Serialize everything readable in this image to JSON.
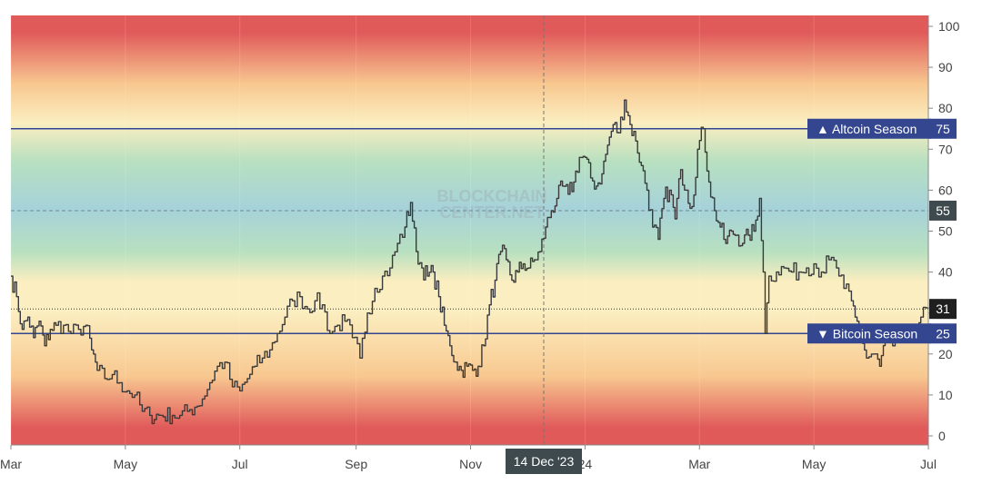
{
  "watermark": {
    "line1": "BLOCKCHAIN",
    "line2": "CENTER.NET"
  },
  "chart_data": {
    "type": "line",
    "y_axis": {
      "range": [
        0,
        100
      ],
      "ticks": [
        0,
        10,
        20,
        30,
        40,
        50,
        60,
        70,
        80,
        90,
        100
      ],
      "position": "right"
    },
    "x_axis": {
      "ticks": [
        {
          "label": "Mar",
          "index": 0
        },
        {
          "label": "May",
          "index": 61
        },
        {
          "label": "Jul",
          "index": 122
        },
        {
          "label": "Sep",
          "index": 184
        },
        {
          "label": "Nov",
          "index": 245
        },
        {
          "label": "24",
          "index": 306
        },
        {
          "label": "Mar",
          "index": 367
        },
        {
          "label": "May",
          "index": 428
        },
        {
          "label": "Jul",
          "index": 489
        }
      ]
    },
    "reference_lines": [
      {
        "label": "▲ Altcoin Season",
        "value": 75
      },
      {
        "label": "▼ Bitcoin Season",
        "value": 25
      }
    ],
    "dashed_level": {
      "value": 55,
      "label": "55"
    },
    "current_value": {
      "value": 31,
      "label": "31"
    },
    "crosshair": {
      "label": "14 Dec '23",
      "index": 284
    },
    "gradient_colors": {
      "top": "#e05a5a",
      "orange": "#f8c890",
      "pale": "#fbeec0",
      "mint": "#b8e0c0",
      "blue": "#a6d2da"
    },
    "series": [
      {
        "color": "#3a3a3a",
        "keypoints": [
          [
            0,
            39
          ],
          [
            3,
            34
          ],
          [
            6,
            26
          ],
          [
            9,
            29
          ],
          [
            12,
            24
          ],
          [
            15,
            28
          ],
          [
            18,
            22
          ],
          [
            21,
            26
          ],
          [
            24,
            27
          ],
          [
            28,
            27
          ],
          [
            32,
            25
          ],
          [
            36,
            26
          ],
          [
            40,
            27
          ],
          [
            43,
            21
          ],
          [
            46,
            16
          ],
          [
            50,
            14
          ],
          [
            54,
            15
          ],
          [
            58,
            13
          ],
          [
            62,
            11
          ],
          [
            66,
            10
          ],
          [
            70,
            6
          ],
          [
            74,
            5
          ],
          [
            80,
            5
          ],
          [
            86,
            5
          ],
          [
            90,
            5
          ],
          [
            94,
            6
          ],
          [
            98,
            7
          ],
          [
            102,
            9
          ],
          [
            106,
            13
          ],
          [
            110,
            17
          ],
          [
            114,
            18
          ],
          [
            118,
            12
          ],
          [
            122,
            11
          ],
          [
            126,
            14
          ],
          [
            130,
            17
          ],
          [
            134,
            19
          ],
          [
            138,
            21
          ],
          [
            142,
            25
          ],
          [
            146,
            29
          ],
          [
            150,
            33
          ],
          [
            154,
            34
          ],
          [
            158,
            31
          ],
          [
            162,
            33
          ],
          [
            166,
            32
          ],
          [
            170,
            25
          ],
          [
            174,
            27
          ],
          [
            178,
            28
          ],
          [
            182,
            24
          ],
          [
            186,
            19
          ],
          [
            190,
            30
          ],
          [
            194,
            36
          ],
          [
            198,
            39
          ],
          [
            202,
            41
          ],
          [
            206,
            47
          ],
          [
            210,
            51
          ],
          [
            213,
            57
          ],
          [
            216,
            45
          ],
          [
            219,
            41
          ],
          [
            222,
            39
          ],
          [
            225,
            40
          ],
          [
            228,
            34
          ],
          [
            231,
            27
          ],
          [
            234,
            22
          ],
          [
            237,
            18
          ],
          [
            240,
            16
          ],
          [
            243,
            17
          ],
          [
            246,
            16
          ],
          [
            249,
            17
          ],
          [
            252,
            22
          ],
          [
            255,
            32
          ],
          [
            258,
            38
          ],
          [
            261,
            45
          ],
          [
            264,
            43
          ],
          [
            267,
            38
          ],
          [
            270,
            40
          ],
          [
            273,
            42
          ],
          [
            276,
            41
          ],
          [
            279,
            43
          ],
          [
            282,
            45
          ],
          [
            285,
            51
          ],
          [
            288,
            55
          ],
          [
            291,
            58
          ],
          [
            294,
            61
          ],
          [
            297,
            59
          ],
          [
            300,
            62
          ],
          [
            303,
            68
          ],
          [
            306,
            68
          ],
          [
            309,
            63
          ],
          [
            312,
            61
          ],
          [
            315,
            64
          ],
          [
            318,
            71
          ],
          [
            321,
            76
          ],
          [
            324,
            74
          ],
          [
            327,
            82
          ],
          [
            330,
            76
          ],
          [
            333,
            72
          ],
          [
            336,
            66
          ],
          [
            339,
            60
          ],
          [
            342,
            51
          ],
          [
            345,
            48
          ],
          [
            348,
            58
          ],
          [
            351,
            60
          ],
          [
            354,
            53
          ],
          [
            357,
            65
          ],
          [
            360,
            60
          ],
          [
            363,
            56
          ],
          [
            366,
            70
          ],
          [
            369,
            75
          ],
          [
            372,
            62
          ],
          [
            375,
            55
          ],
          [
            378,
            51
          ],
          [
            381,
            47
          ],
          [
            384,
            50
          ],
          [
            387,
            49
          ],
          [
            390,
            47
          ],
          [
            393,
            49
          ],
          [
            396,
            50
          ],
          [
            399,
            58
          ],
          [
            401,
            40
          ],
          [
            402,
            25
          ],
          [
            404,
            39
          ],
          [
            408,
            40
          ],
          [
            412,
            41
          ],
          [
            416,
            40
          ],
          [
            420,
            40
          ],
          [
            424,
            41
          ],
          [
            428,
            42
          ],
          [
            432,
            40
          ],
          [
            436,
            43
          ],
          [
            440,
            41
          ],
          [
            444,
            36
          ],
          [
            448,
            33
          ],
          [
            450,
            29
          ],
          [
            453,
            25
          ],
          [
            456,
            19
          ],
          [
            460,
            20
          ],
          [
            463,
            17
          ],
          [
            466,
            23
          ],
          [
            470,
            22
          ],
          [
            474,
            25
          ],
          [
            478,
            24
          ],
          [
            482,
            27
          ],
          [
            485,
            29
          ],
          [
            489,
            31
          ]
        ]
      }
    ]
  }
}
